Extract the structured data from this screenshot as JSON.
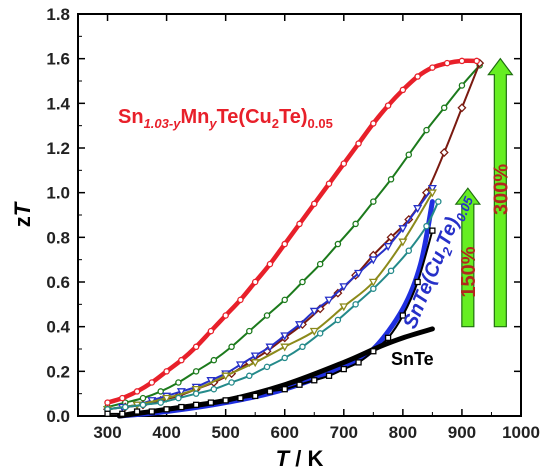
{
  "chart_data": {
    "type": "line",
    "xlabel": "T / K",
    "ylabel": "zT",
    "xlim": [
      250,
      1000
    ],
    "ylim": [
      0,
      1.8
    ],
    "xticks": [
      300,
      400,
      500,
      600,
      700,
      800,
      900,
      1000
    ],
    "yticks": [
      0.0,
      0.2,
      0.4,
      0.6,
      0.8,
      1.0,
      1.2,
      1.4,
      1.6,
      1.8
    ],
    "grid": false,
    "annotations": {
      "sn_mn_label_main": "Sn",
      "sn_mn_label_sub1": "1.03-y",
      "sn_mn_label_mn": "Mn",
      "sn_mn_label_y": "y",
      "sn_mn_label_te": "Te(Cu",
      "sn_mn_label_sub2": "2",
      "sn_mn_label_te2": "Te)",
      "sn_mn_label_sub3": "0.05",
      "sntecu_label": "SnTe(Cu",
      "sntecu_sub": "2",
      "sntecu_te": "Te)",
      "sntecu_sub2": "0.05",
      "snte_label": "SnTe",
      "pct150": "150%",
      "pct300": "300%"
    },
    "series": [
      {
        "color": "#e8202a",
        "marker": "circle",
        "x": [
          300,
          325,
          350,
          375,
          400,
          425,
          450,
          475,
          500,
          525,
          550,
          575,
          600,
          625,
          650,
          675,
          700,
          725,
          750,
          775,
          800,
          825,
          850,
          875,
          900,
          925
        ],
        "y": [
          0.06,
          0.08,
          0.11,
          0.15,
          0.2,
          0.25,
          0.31,
          0.38,
          0.45,
          0.52,
          0.6,
          0.68,
          0.77,
          0.86,
          0.95,
          1.04,
          1.13,
          1.22,
          1.31,
          1.39,
          1.46,
          1.52,
          1.56,
          1.58,
          1.59,
          1.59
        ]
      },
      {
        "color": "#1c7a1c",
        "marker": "circle",
        "x": [
          300,
          330,
          360,
          390,
          420,
          450,
          480,
          510,
          540,
          570,
          600,
          630,
          660,
          690,
          720,
          750,
          780,
          810,
          840,
          870,
          900,
          930
        ],
        "y": [
          0.04,
          0.06,
          0.08,
          0.11,
          0.15,
          0.2,
          0.25,
          0.31,
          0.38,
          0.45,
          0.52,
          0.6,
          0.68,
          0.77,
          0.86,
          0.96,
          1.06,
          1.17,
          1.28,
          1.38,
          1.48,
          1.57
        ]
      },
      {
        "color": "#7a1a10",
        "marker": "diamond",
        "x": [
          300,
          330,
          360,
          390,
          420,
          450,
          480,
          510,
          540,
          570,
          600,
          630,
          660,
          690,
          720,
          750,
          780,
          810,
          840,
          870,
          900,
          930
        ],
        "y": [
          0.03,
          0.04,
          0.05,
          0.07,
          0.09,
          0.12,
          0.15,
          0.19,
          0.24,
          0.29,
          0.35,
          0.41,
          0.48,
          0.55,
          0.63,
          0.72,
          0.8,
          0.88,
          1.0,
          1.18,
          1.38,
          1.58
        ]
      },
      {
        "color": "#2630c8",
        "marker": "triangle-down",
        "x": [
          300,
          325,
          350,
          375,
          400,
          425,
          450,
          475,
          500,
          525,
          550,
          575,
          600,
          625,
          650,
          675,
          700,
          725,
          750,
          775,
          800,
          825,
          850
        ],
        "y": [
          0.03,
          0.04,
          0.05,
          0.07,
          0.09,
          0.11,
          0.13,
          0.16,
          0.19,
          0.23,
          0.27,
          0.31,
          0.36,
          0.41,
          0.47,
          0.52,
          0.58,
          0.64,
          0.7,
          0.76,
          0.84,
          0.93,
          1.02
        ]
      },
      {
        "color": "#8c8a1a",
        "marker": "triangle-down",
        "x": [
          300,
          350,
          400,
          450,
          500,
          550,
          600,
          650,
          700,
          750,
          800,
          850
        ],
        "y": [
          0.03,
          0.05,
          0.08,
          0.12,
          0.18,
          0.24,
          0.31,
          0.38,
          0.49,
          0.6,
          0.78,
          1.0
        ]
      },
      {
        "color": "#248a8a",
        "marker": "circle",
        "x": [
          300,
          330,
          360,
          390,
          420,
          450,
          480,
          510,
          540,
          570,
          600,
          630,
          660,
          690,
          720,
          750,
          780,
          810,
          840,
          860
        ],
        "y": [
          0.03,
          0.04,
          0.05,
          0.06,
          0.08,
          0.1,
          0.12,
          0.15,
          0.18,
          0.22,
          0.26,
          0.31,
          0.37,
          0.43,
          0.5,
          0.57,
          0.65,
          0.74,
          0.85,
          0.96
        ]
      },
      {
        "color": "#000000",
        "marker": "square",
        "x": [
          300,
          325,
          350,
          375,
          400,
          425,
          450,
          475,
          500,
          525,
          550,
          575,
          600,
          625,
          650,
          675,
          700,
          725,
          750,
          775,
          800,
          825,
          850
        ],
        "y": [
          0.01,
          0.01,
          0.02,
          0.02,
          0.03,
          0.04,
          0.05,
          0.06,
          0.07,
          0.08,
          0.09,
          0.11,
          0.12,
          0.14,
          0.16,
          0.18,
          0.21,
          0.24,
          0.29,
          0.35,
          0.45,
          0.6,
          0.83
        ]
      },
      {
        "color": "#1f2fe0",
        "marker": "none",
        "width": 5,
        "x": [
          320,
          400,
          500,
          600,
          700,
          750,
          800,
          830,
          850
        ],
        "y": [
          0.0,
          0.02,
          0.06,
          0.12,
          0.22,
          0.3,
          0.48,
          0.68,
          0.96
        ]
      },
      {
        "color": "#000000",
        "marker": "none",
        "width": 5,
        "x": [
          320,
          400,
          500,
          600,
          700,
          760,
          800,
          850
        ],
        "y": [
          0.0,
          0.03,
          0.07,
          0.14,
          0.24,
          0.31,
          0.35,
          0.39
        ]
      }
    ],
    "arrows": [
      {
        "x": 910,
        "y_from": 0.4,
        "y_to": 1.02,
        "fill": "#66ee22"
      },
      {
        "x": 965,
        "y_from": 0.4,
        "y_to": 1.6,
        "fill": "#66ee22"
      }
    ]
  }
}
